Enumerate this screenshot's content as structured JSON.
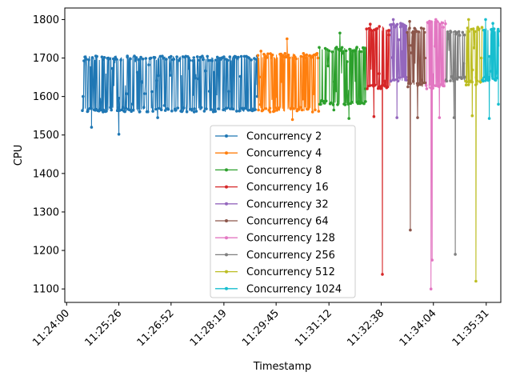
{
  "chart_data": {
    "type": "line",
    "title": "",
    "xlabel": "Timestamp",
    "ylabel": "CPU",
    "grid": false,
    "legend_position": "bottom-center",
    "x_ticks": [
      "11:24:00",
      "11:25:26",
      "11:26:52",
      "11:28:19",
      "11:29:45",
      "11:31:12",
      "11:32:38",
      "11:34:04",
      "11:35:31"
    ],
    "xlim": [
      "11:23:57",
      "11:35:55"
    ],
    "y_ticks": [
      1100,
      1200,
      1300,
      1400,
      1500,
      1600,
      1700,
      1800
    ],
    "ylim": [
      1065,
      1830
    ],
    "series": [
      {
        "name": "Concurrency 2",
        "color": "#1f77b4",
        "x_range": [
          "11:24:26",
          "11:29:14"
        ],
        "band_low": 1560,
        "band_high": 1705,
        "points": [
          [
            "11:24:27",
            1600
          ],
          [
            "11:24:31",
            1702
          ],
          [
            "11:24:35",
            1562
          ],
          [
            "11:24:41",
            1520
          ],
          [
            "11:24:48",
            1705
          ],
          [
            "11:25:00",
            1560
          ],
          [
            "11:25:26",
            1502
          ],
          [
            "11:25:40",
            1705
          ],
          [
            "11:26:00",
            1560
          ],
          [
            "11:26:30",
            1545
          ],
          [
            "11:26:52",
            1704
          ],
          [
            "11:27:30",
            1560
          ],
          [
            "11:28:19",
            1703
          ],
          [
            "11:28:40",
            1562
          ],
          [
            "11:29:14",
            1600
          ]
        ]
      },
      {
        "name": "Concurrency 4",
        "color": "#ff7f0e",
        "x_range": [
          "11:29:15",
          "11:30:55"
        ],
        "band_low": 1560,
        "band_high": 1712,
        "points": [
          [
            "11:29:16",
            1565
          ],
          [
            "11:29:20",
            1718
          ],
          [
            "11:29:35",
            1560
          ],
          [
            "11:29:45",
            1600
          ],
          [
            "11:30:03",
            1750
          ],
          [
            "11:30:12",
            1540
          ],
          [
            "11:30:30",
            1712
          ],
          [
            "11:30:45",
            1560
          ],
          [
            "11:30:54",
            1700
          ]
        ]
      },
      {
        "name": "Concurrency 8",
        "color": "#2ca02c",
        "x_range": [
          "11:30:56",
          "11:32:13"
        ],
        "band_low": 1578,
        "band_high": 1728,
        "points": [
          [
            "11:30:57",
            1580
          ],
          [
            "11:31:06",
            1725
          ],
          [
            "11:31:20",
            1565
          ],
          [
            "11:31:30",
            1765
          ],
          [
            "11:31:45",
            1543
          ],
          [
            "11:31:58",
            1728
          ],
          [
            "11:32:12",
            1620
          ]
        ]
      },
      {
        "name": "Concurrency 16",
        "color": "#d62728",
        "x_range": [
          "11:32:14",
          "11:32:52"
        ],
        "band_low": 1620,
        "band_high": 1782,
        "points": [
          [
            "11:32:15",
            1620
          ],
          [
            "11:32:20",
            1788
          ],
          [
            "11:32:26",
            1548
          ],
          [
            "11:32:35",
            1782
          ],
          [
            "11:32:40",
            1138
          ],
          [
            "11:32:44",
            1640
          ],
          [
            "11:32:51",
            1760
          ]
        ]
      },
      {
        "name": "Concurrency 32",
        "color": "#9467bd",
        "x_range": [
          "11:32:53",
          "11:33:20"
        ],
        "band_low": 1640,
        "band_high": 1790,
        "points": [
          [
            "11:32:54",
            1640
          ],
          [
            "11:32:58",
            1800
          ],
          [
            "11:33:04",
            1545
          ],
          [
            "11:33:10",
            1790
          ],
          [
            "11:33:19",
            1650
          ]
        ]
      },
      {
        "name": "Concurrency 64",
        "color": "#8c564b",
        "x_range": [
          "11:33:21",
          "11:33:51"
        ],
        "band_low": 1625,
        "band_high": 1778,
        "points": [
          [
            "11:33:22",
            1625
          ],
          [
            "11:33:25",
            1795
          ],
          [
            "11:33:26",
            1253
          ],
          [
            "11:33:31",
            1640
          ],
          [
            "11:33:38",
            1545
          ],
          [
            "11:33:44",
            1778
          ],
          [
            "11:33:50",
            1700
          ]
        ]
      },
      {
        "name": "Concurrency 128",
        "color": "#e377c2",
        "x_range": [
          "11:33:52",
          "11:34:24"
        ],
        "band_low": 1620,
        "band_high": 1800,
        "points": [
          [
            "11:33:53",
            1620
          ],
          [
            "11:33:58",
            1790
          ],
          [
            "11:34:00",
            1100
          ],
          [
            "11:34:02",
            1175
          ],
          [
            "11:34:08",
            1800
          ],
          [
            "11:34:14",
            1545
          ],
          [
            "11:34:20",
            1780
          ],
          [
            "11:34:23",
            1640
          ]
        ]
      },
      {
        "name": "Concurrency 256",
        "color": "#7f7f7f",
        "x_range": [
          "11:34:25",
          "11:34:56"
        ],
        "band_low": 1640,
        "band_high": 1770,
        "points": [
          [
            "11:34:26",
            1640
          ],
          [
            "11:34:32",
            1770
          ],
          [
            "11:34:38",
            1545
          ],
          [
            "11:34:40",
            1190
          ],
          [
            "11:34:45",
            1650
          ],
          [
            "11:34:55",
            1760
          ]
        ]
      },
      {
        "name": "Concurrency 512",
        "color": "#bcbd22",
        "x_range": [
          "11:34:57",
          "11:35:24"
        ],
        "band_low": 1630,
        "band_high": 1780,
        "points": [
          [
            "11:34:58",
            1630
          ],
          [
            "11:35:02",
            1800
          ],
          [
            "11:35:08",
            1550
          ],
          [
            "11:35:14",
            1120
          ],
          [
            "11:35:17",
            1780
          ],
          [
            "11:35:23",
            1700
          ]
        ]
      },
      {
        "name": "Concurrency 1024",
        "color": "#17becf",
        "x_range": [
          "11:35:25",
          "11:35:52"
        ],
        "band_low": 1640,
        "band_high": 1780,
        "points": [
          [
            "11:35:26",
            1640
          ],
          [
            "11:35:30",
            1800
          ],
          [
            "11:35:36",
            1543
          ],
          [
            "11:35:42",
            1790
          ],
          [
            "11:35:51",
            1580
          ]
        ]
      }
    ]
  }
}
